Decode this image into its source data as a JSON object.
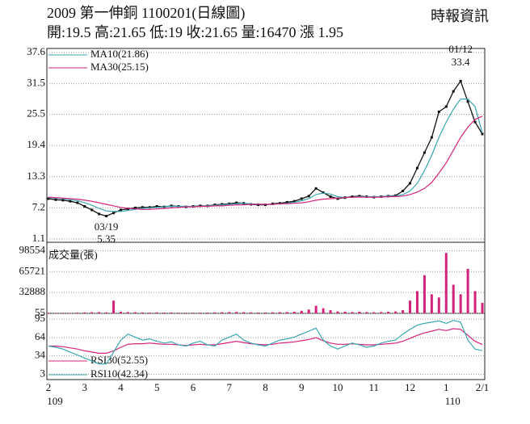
{
  "header": {
    "title": "2009  第一伸銅 1100201(日線圖)",
    "source": "時報資訊",
    "info": "開:19.5 高:21.65 低:19 收:21.65 量:16470 漲 1.95"
  },
  "chart_data": [
    {
      "type": "line",
      "color": "#111111",
      "values": [
        9,
        8.8,
        8.7,
        8.5,
        8.2,
        7.5,
        6.8,
        6,
        5.6,
        6.2,
        6.8,
        7,
        7.2,
        7.3,
        7.3,
        7.5,
        7.4,
        7.6,
        7.5,
        7.4,
        7.5,
        7.6,
        7.6,
        7.8,
        7.9,
        8,
        8.2,
        8.1,
        7.9,
        7.8,
        7.8,
        8,
        8.1,
        8.3,
        8.5,
        9,
        9.5,
        11,
        10.2,
        9.4,
        9,
        9.2,
        9.4,
        9.5,
        9.4,
        9.3,
        9.4,
        9.5,
        9.6,
        10.5,
        12,
        15,
        18,
        21,
        26,
        27,
        30,
        32,
        28,
        24,
        21.65
      ],
      "series": [
        {
          "name": "MA10(21.86)",
          "color": "#3aa8b0",
          "values": [
            9.2,
            9.1,
            9,
            8.8,
            8.6,
            8.2,
            7.7,
            7.1,
            6.6,
            6.5,
            6.5,
            6.7,
            6.9,
            7.1,
            7.2,
            7.3,
            7.4,
            7.5,
            7.5,
            7.5,
            7.5,
            7.5,
            7.6,
            7.7,
            7.8,
            7.9,
            8,
            8.1,
            8,
            7.9,
            7.9,
            7.9,
            8,
            8.1,
            8.3,
            8.6,
            9,
            9.8,
            10.1,
            9.9,
            9.4,
            9.2,
            9.3,
            9.4,
            9.4,
            9.4,
            9.4,
            9.5,
            9.5,
            9.8,
            10.5,
            12,
            14.5,
            17.5,
            21,
            24,
            26.5,
            28.5,
            28.5,
            27,
            21.86
          ]
        },
        {
          "name": "MA30(25.15)",
          "color": "#d4237a",
          "values": [
            9.3,
            9.2,
            9.1,
            9,
            8.9,
            8.7,
            8.5,
            8.2,
            7.9,
            7.6,
            7.3,
            7.1,
            7,
            6.9,
            6.9,
            7,
            7.1,
            7.2,
            7.3,
            7.4,
            7.4,
            7.5,
            7.5,
            7.6,
            7.6,
            7.7,
            7.8,
            7.8,
            7.9,
            7.9,
            7.9,
            7.9,
            8,
            8,
            8.1,
            8.2,
            8.4,
            8.7,
            8.9,
            9,
            9.1,
            9.2,
            9.3,
            9.3,
            9.3,
            9.3,
            9.3,
            9.4,
            9.4,
            9.5,
            9.8,
            10.3,
            11,
            12.2,
            14,
            16,
            18.5,
            21,
            23,
            24.5,
            25.15
          ]
        }
      ],
      "annotations": [
        {
          "label": "01/12",
          "value": 33.4
        },
        {
          "label": "03/19",
          "value": 5.35
        }
      ],
      "ylim": [
        1.1,
        37.6
      ],
      "yticks": [
        1.1,
        7.2,
        13.3,
        19.4,
        25.5,
        31.5,
        37.6
      ],
      "grid": true
    },
    {
      "type": "bar",
      "title": "成交量(張)",
      "color": "#d4237a",
      "values": [
        1000,
        800,
        900,
        700,
        1200,
        1500,
        1800,
        2000,
        1500,
        20000,
        2500,
        2000,
        1800,
        1500,
        1200,
        1500,
        1200,
        1300,
        1000,
        900,
        1000,
        1100,
        1200,
        1500,
        1800,
        2000,
        2200,
        1800,
        1500,
        1300,
        1400,
        1600,
        1800,
        2000,
        2500,
        4000,
        6000,
        12000,
        8000,
        5000,
        3000,
        2500,
        2000,
        2500,
        2000,
        1800,
        2000,
        2500,
        3000,
        5000,
        20000,
        35000,
        60000,
        30000,
        25000,
        95000,
        45000,
        30000,
        70000,
        35000,
        16470
      ],
      "ylim": [
        0,
        108000
      ],
      "yticks": [
        55,
        32888,
        65721,
        98554
      ],
      "grid": true
    },
    {
      "type": "line",
      "categories": [
        "2",
        null,
        null,
        null,
        null,
        "3",
        null,
        null,
        null,
        null,
        "4",
        null,
        null,
        null,
        null,
        "5",
        null,
        null,
        null,
        null,
        "6",
        null,
        null,
        null,
        null,
        "7",
        null,
        null,
        null,
        null,
        "8",
        null,
        null,
        null,
        null,
        "9",
        null,
        null,
        null,
        null,
        "10",
        null,
        null,
        null,
        null,
        "11",
        null,
        null,
        null,
        null,
        "12",
        null,
        null,
        null,
        null,
        "1",
        null,
        null,
        null,
        null,
        "2/1"
      ],
      "x_sublabels": [
        "109",
        "110"
      ],
      "series": [
        {
          "name": "RSI30(52.55)",
          "color": "#d4237a",
          "values": [
            50,
            50,
            49,
            47,
            45,
            42,
            40,
            38,
            38,
            42,
            48,
            53,
            54,
            54,
            55,
            54,
            53,
            53,
            52,
            51,
            52,
            53,
            52,
            52,
            54,
            56,
            58,
            56,
            54,
            53,
            52,
            53,
            55,
            56,
            57,
            59,
            61,
            64,
            59,
            55,
            53,
            53,
            54,
            53,
            52,
            52,
            53,
            54,
            55,
            58,
            63,
            68,
            72,
            75,
            78,
            76,
            79,
            78,
            68,
            58,
            52.55
          ]
        },
        {
          "name": "RSI10(42.34)",
          "color": "#3aa8b0",
          "values": [
            50,
            48,
            45,
            40,
            35,
            30,
            25,
            20,
            20,
            40,
            60,
            70,
            65,
            60,
            62,
            58,
            55,
            57,
            52,
            50,
            55,
            58,
            52,
            50,
            60,
            65,
            70,
            60,
            55,
            52,
            50,
            55,
            60,
            62,
            65,
            70,
            75,
            80,
            60,
            50,
            45,
            50,
            55,
            52,
            48,
            50,
            55,
            58,
            60,
            70,
            78,
            85,
            88,
            90,
            92,
            88,
            93,
            90,
            60,
            45,
            42.34
          ]
        }
      ],
      "ylim": [
        -6,
        102
      ],
      "yticks": [
        3,
        34,
        64,
        95
      ],
      "grid": true
    }
  ]
}
